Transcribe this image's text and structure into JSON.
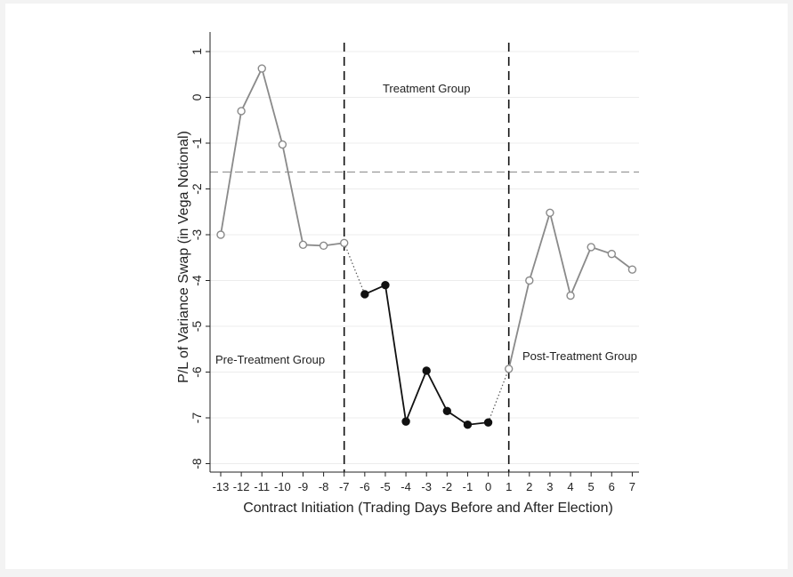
{
  "chart_data": {
    "type": "line",
    "xlabel": "Contract Initiation (Trading Days Before and After Election)",
    "ylabel": "P/L of Variance Swap (in Vega Notional)",
    "xlim": [
      -13,
      7
    ],
    "ylim": [
      -8,
      1
    ],
    "x_ticks": [
      -13,
      -12,
      -11,
      -10,
      -9,
      -8,
      -7,
      -6,
      -5,
      -4,
      -3,
      -2,
      -1,
      0,
      1,
      2,
      3,
      4,
      5,
      6,
      7
    ],
    "y_ticks": [
      1,
      0,
      -1,
      -2,
      -3,
      -4,
      -5,
      -6,
      -7,
      -8
    ],
    "grid": "horizontal",
    "series": [
      {
        "group": "pre",
        "color": "#8a8a8a",
        "marker": "hollow",
        "points": [
          [
            -13,
            -3.0
          ],
          [
            -12,
            -0.3
          ],
          [
            -11,
            0.63
          ],
          [
            -10,
            -1.03
          ],
          [
            -9,
            -3.22
          ],
          [
            -8,
            -3.24
          ],
          [
            -7,
            -3.18
          ]
        ]
      },
      {
        "group": "treatment",
        "color": "#111111",
        "marker": "filled",
        "points": [
          [
            -6,
            -4.3
          ],
          [
            -5,
            -4.1
          ],
          [
            -4,
            -7.08
          ],
          [
            -3,
            -5.97
          ],
          [
            -2,
            -6.85
          ],
          [
            -1,
            -7.15
          ],
          [
            0,
            -7.1
          ]
        ]
      },
      {
        "group": "post",
        "color": "#8a8a8a",
        "marker": "hollow",
        "points": [
          [
            1,
            -5.93
          ],
          [
            2,
            -4.0
          ],
          [
            3,
            -2.52
          ],
          [
            4,
            -4.33
          ],
          [
            5,
            -3.27
          ],
          [
            6,
            -3.42
          ],
          [
            7,
            -3.76
          ]
        ]
      }
    ],
    "connectors": [
      {
        "from": [
          -7,
          -3.18
        ],
        "to": [
          -6,
          -4.3
        ]
      },
      {
        "from": [
          0,
          -7.1
        ],
        "to": [
          1,
          -5.93
        ]
      }
    ],
    "reference_lines": {
      "horizontal": -1.63,
      "vertical": [
        -7,
        1
      ]
    },
    "annotations": {
      "treatment": "Treatment Group",
      "pre": "Pre-Treatment Group",
      "post": "Post-Treatment Group"
    }
  }
}
